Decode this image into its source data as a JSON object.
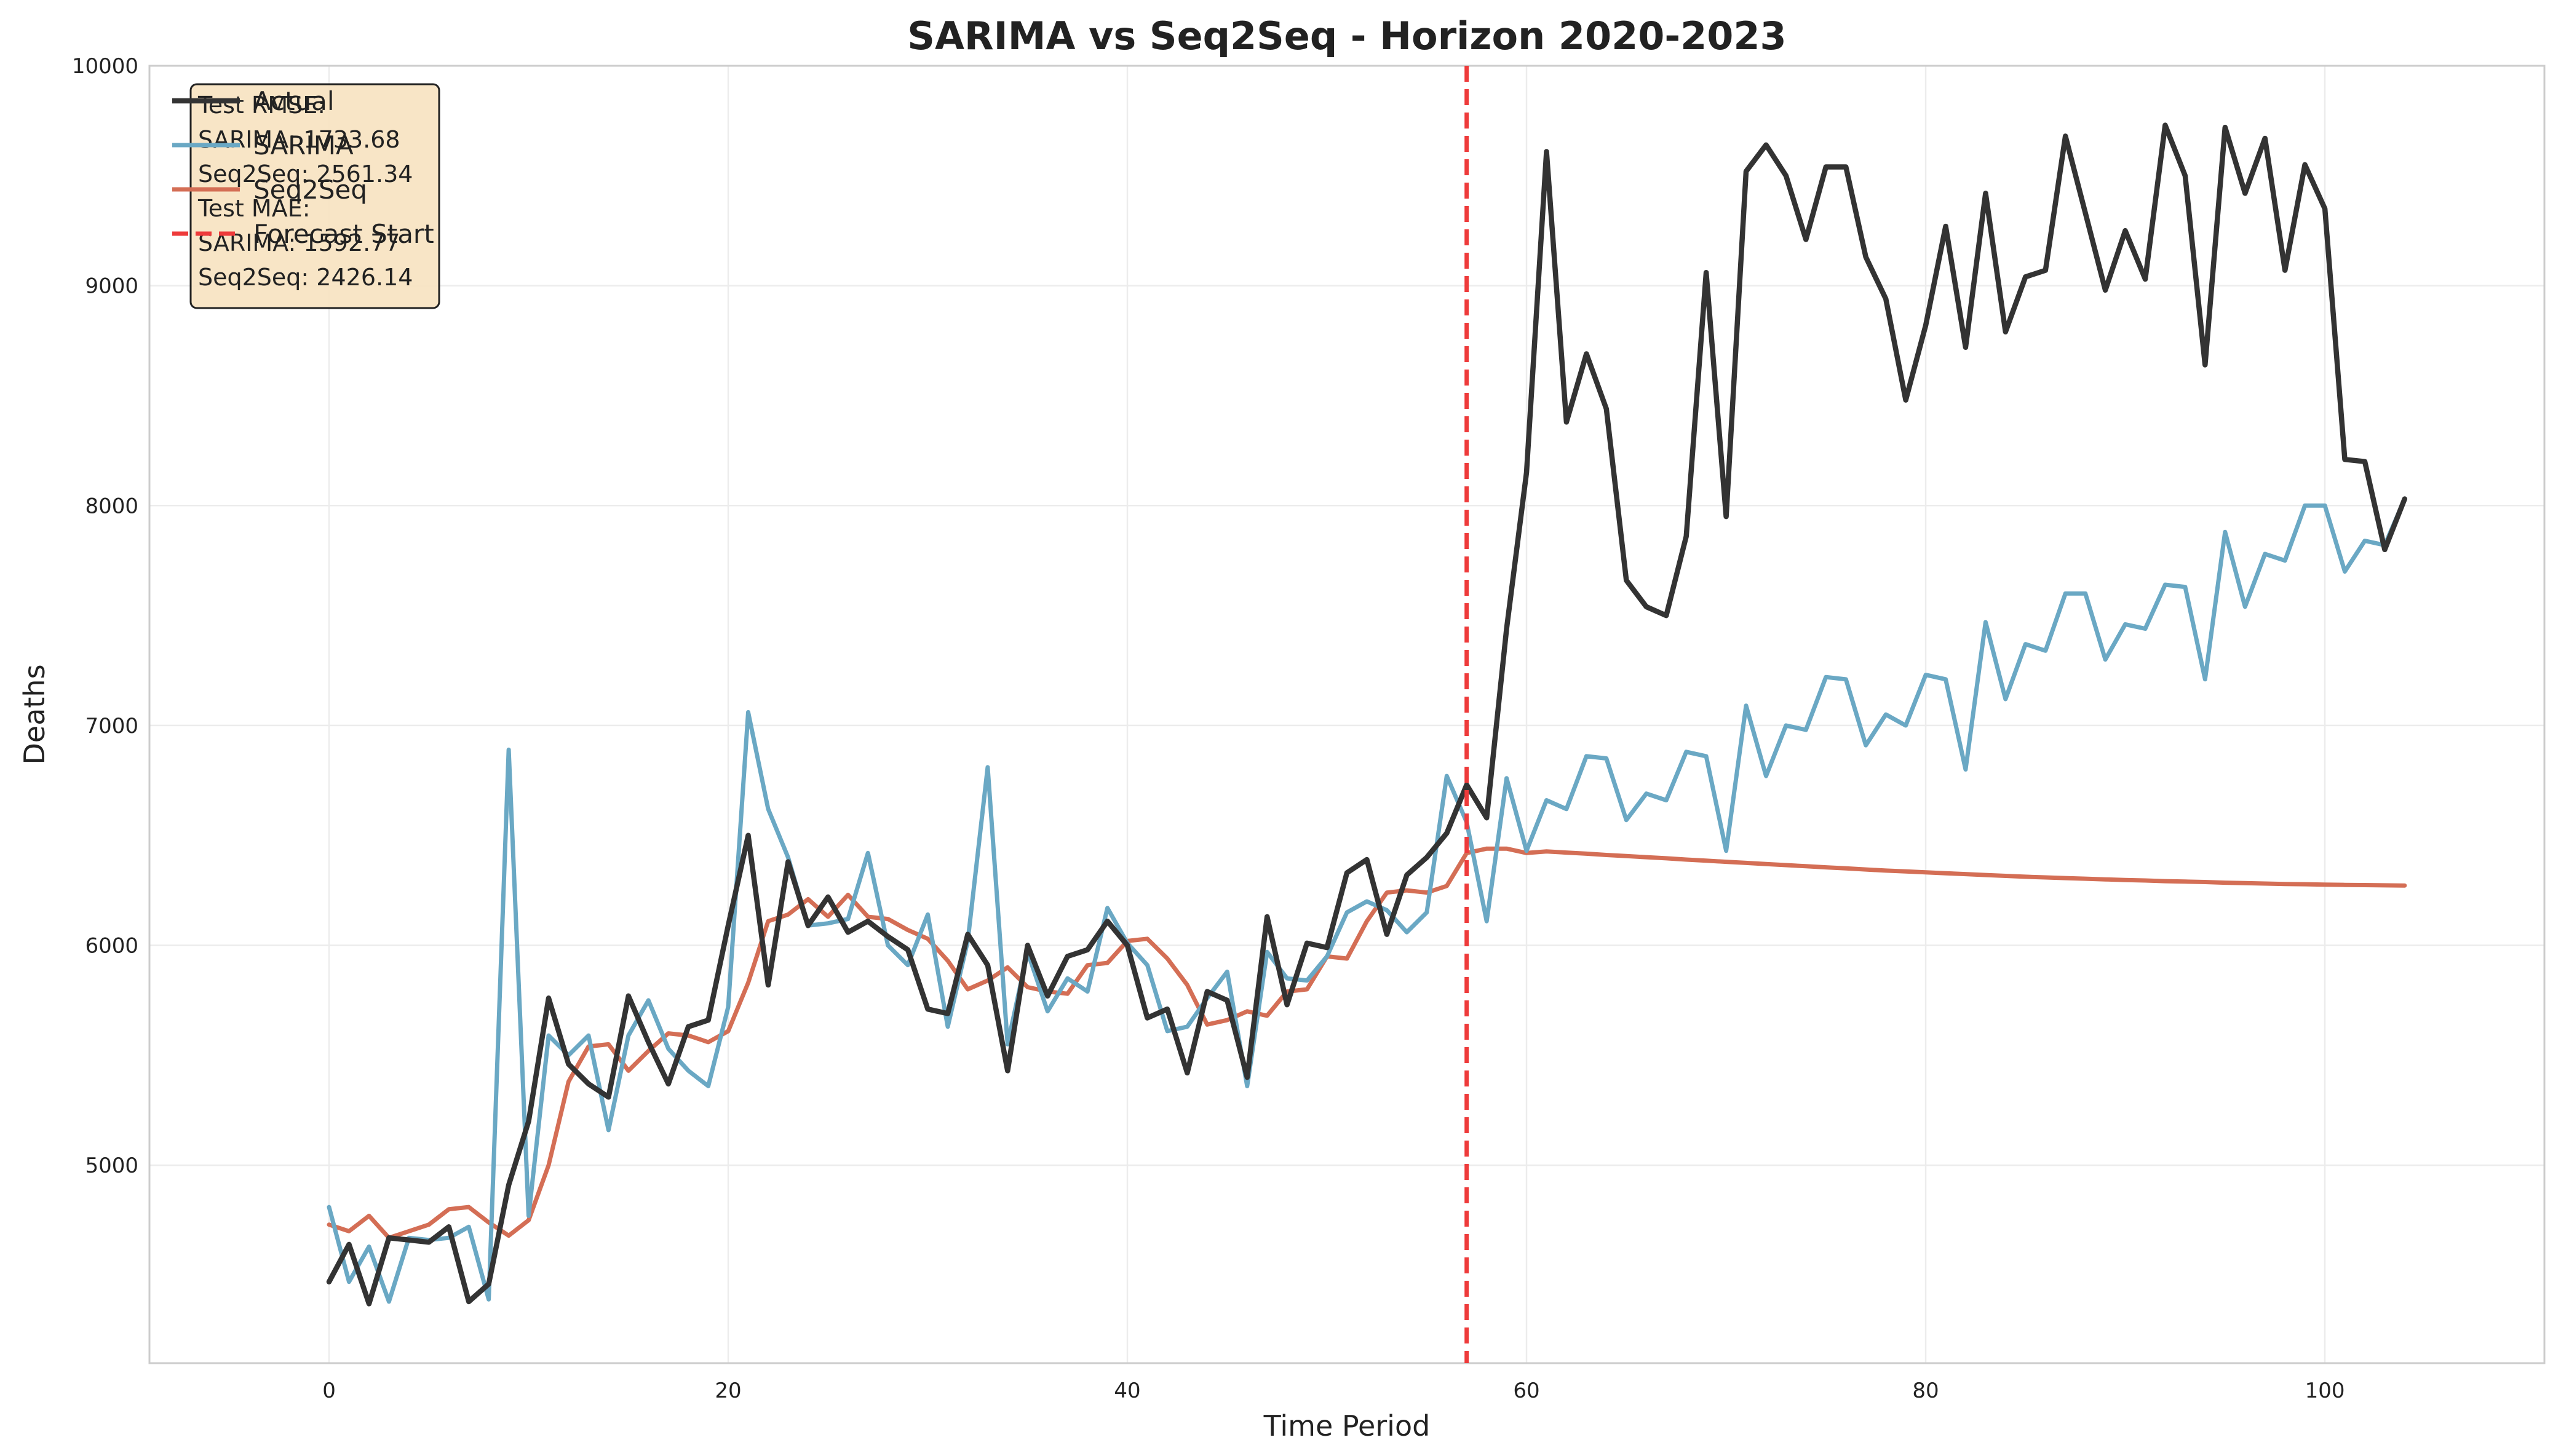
{
  "chart_data": {
    "type": "line",
    "title": "SARIMA vs Seq2Seq - Horizon 2020-2023",
    "xlabel": "Time Period",
    "ylabel": "Deaths",
    "xlim": [
      -9,
      111
    ],
    "ylim": [
      4100,
      10000
    ],
    "xticks": [
      0,
      20,
      40,
      60,
      80,
      100
    ],
    "yticks": [
      5000,
      6000,
      7000,
      8000,
      9000,
      10000
    ],
    "grid": true,
    "legend_position": "top-left",
    "forecast_start": 57,
    "colors": {
      "actual": "#333333",
      "sarima": "#6aa8c4",
      "seq2seq": "#d46e55",
      "forecast_start": "#ee3b3b",
      "metrics_box_fill": "#f7e3c1",
      "metrics_box_border": "#222222",
      "grid": "#ececec",
      "frame": "#cccccc"
    },
    "series": [
      {
        "name": "Actual",
        "key": "actual",
        "x_start": 0,
        "values": [
          4470,
          4640,
          4370,
          4670,
          4660,
          4650,
          4720,
          4380,
          4460,
          4910,
          5200,
          5760,
          5460,
          5370,
          5310,
          5770,
          5560,
          5370,
          5630,
          5660,
          6090,
          6500,
          5820,
          6380,
          6090,
          6220,
          6060,
          6110,
          6040,
          5980,
          5710,
          5690,
          6050,
          5910,
          5430,
          6000,
          5770,
          5950,
          5980,
          6110,
          6000,
          5670,
          5710,
          5420,
          5790,
          5750,
          5400,
          6130,
          5730,
          6010,
          5990,
          6330,
          6390,
          6050,
          6320,
          6400,
          6510,
          6730,
          6580,
          7440,
          8150,
          9610,
          8380,
          8690,
          8440,
          7660,
          7540,
          7500,
          7860,
          9060,
          7950,
          9520,
          9640,
          9500,
          9210,
          9540,
          9540,
          9130,
          8940,
          8480,
          8820,
          9270,
          8720,
          9420,
          8790,
          9040,
          9070,
          9680,
          9330,
          8980,
          9250,
          9030,
          9730,
          9500,
          8640,
          9720,
          9420,
          9670,
          9070,
          9550,
          9350,
          8210,
          8200,
          7800,
          8030
        ]
      },
      {
        "name": "SARIMA",
        "key": "sarima",
        "x_start": 0,
        "values": [
          4810,
          4470,
          4630,
          4380,
          4670,
          4660,
          4670,
          4720,
          4390,
          6890,
          4770,
          5590,
          5500,
          5590,
          5160,
          5590,
          5750,
          5530,
          5430,
          5360,
          5720,
          7060,
          6620,
          6400,
          6090,
          6100,
          6120,
          6420,
          6000,
          5910,
          6140,
          5630,
          6020,
          6810,
          5550,
          5970,
          5700,
          5850,
          5790,
          6170,
          6010,
          5910,
          5610,
          5630,
          5760,
          5880,
          5360,
          5970,
          5850,
          5840,
          5950,
          6150,
          6200,
          6160,
          6060,
          6150,
          6770,
          6560,
          6110,
          6760,
          6430,
          6660,
          6620,
          6860,
          6850,
          6570,
          6690,
          6660,
          6880,
          6860,
          6430,
          7090,
          6770,
          7000,
          6980,
          7220,
          7210,
          6910,
          7050,
          7000,
          7230,
          7210,
          6800,
          7470,
          7120,
          7370,
          7340,
          7600,
          7600,
          7300,
          7460,
          7440,
          7640,
          7630,
          7210,
          7880,
          7540,
          7780,
          7750,
          8000,
          8000,
          7700,
          7840,
          7820,
          8030
        ]
      },
      {
        "name": "Seq2Seq",
        "key": "seq2seq",
        "x_start": 0,
        "values": [
          4730,
          4700,
          4770,
          4670,
          4700,
          4730,
          4800,
          4810,
          4740,
          4680,
          4750,
          5000,
          5380,
          5540,
          5550,
          5430,
          5520,
          5600,
          5590,
          5560,
          5610,
          5830,
          6110,
          6140,
          6210,
          6130,
          6230,
          6130,
          6120,
          6070,
          6030,
          5930,
          5800,
          5840,
          5900,
          5810,
          5790,
          5780,
          5910,
          5920,
          6020,
          6030,
          5940,
          5820,
          5640,
          5660,
          5700,
          5680,
          5790,
          5800,
          5950,
          5940,
          6110,
          6240,
          6250,
          6240,
          6270,
          6420,
          6440,
          6440,
          6420,
          6427,
          6422,
          6417,
          6411,
          6406,
          6401,
          6396,
          6390,
          6385,
          6380,
          6375,
          6370,
          6365,
          6360,
          6355,
          6350,
          6345,
          6340,
          6336,
          6332,
          6328,
          6324,
          6320,
          6316,
          6312,
          6309,
          6306,
          6303,
          6300,
          6297,
          6295,
          6292,
          6290,
          6288,
          6285,
          6283,
          6281,
          6279,
          6278,
          6276,
          6275,
          6274,
          6273,
          6272
        ]
      }
    ],
    "legend": [
      {
        "key": "actual",
        "label": "Actual"
      },
      {
        "key": "sarima",
        "label": "SARIMA"
      },
      {
        "key": "seq2seq",
        "label": "Seq2Seq"
      },
      {
        "key": "forecast_start",
        "label": "Forecast Start"
      }
    ],
    "metrics_box_lines": [
      "Test RMSE:",
      "SARIMA: 1733.68",
      "Seq2Seq: 2561.34",
      "Test MAE:",
      "SARIMA: 1592.77",
      "Seq2Seq: 2426.14"
    ]
  }
}
